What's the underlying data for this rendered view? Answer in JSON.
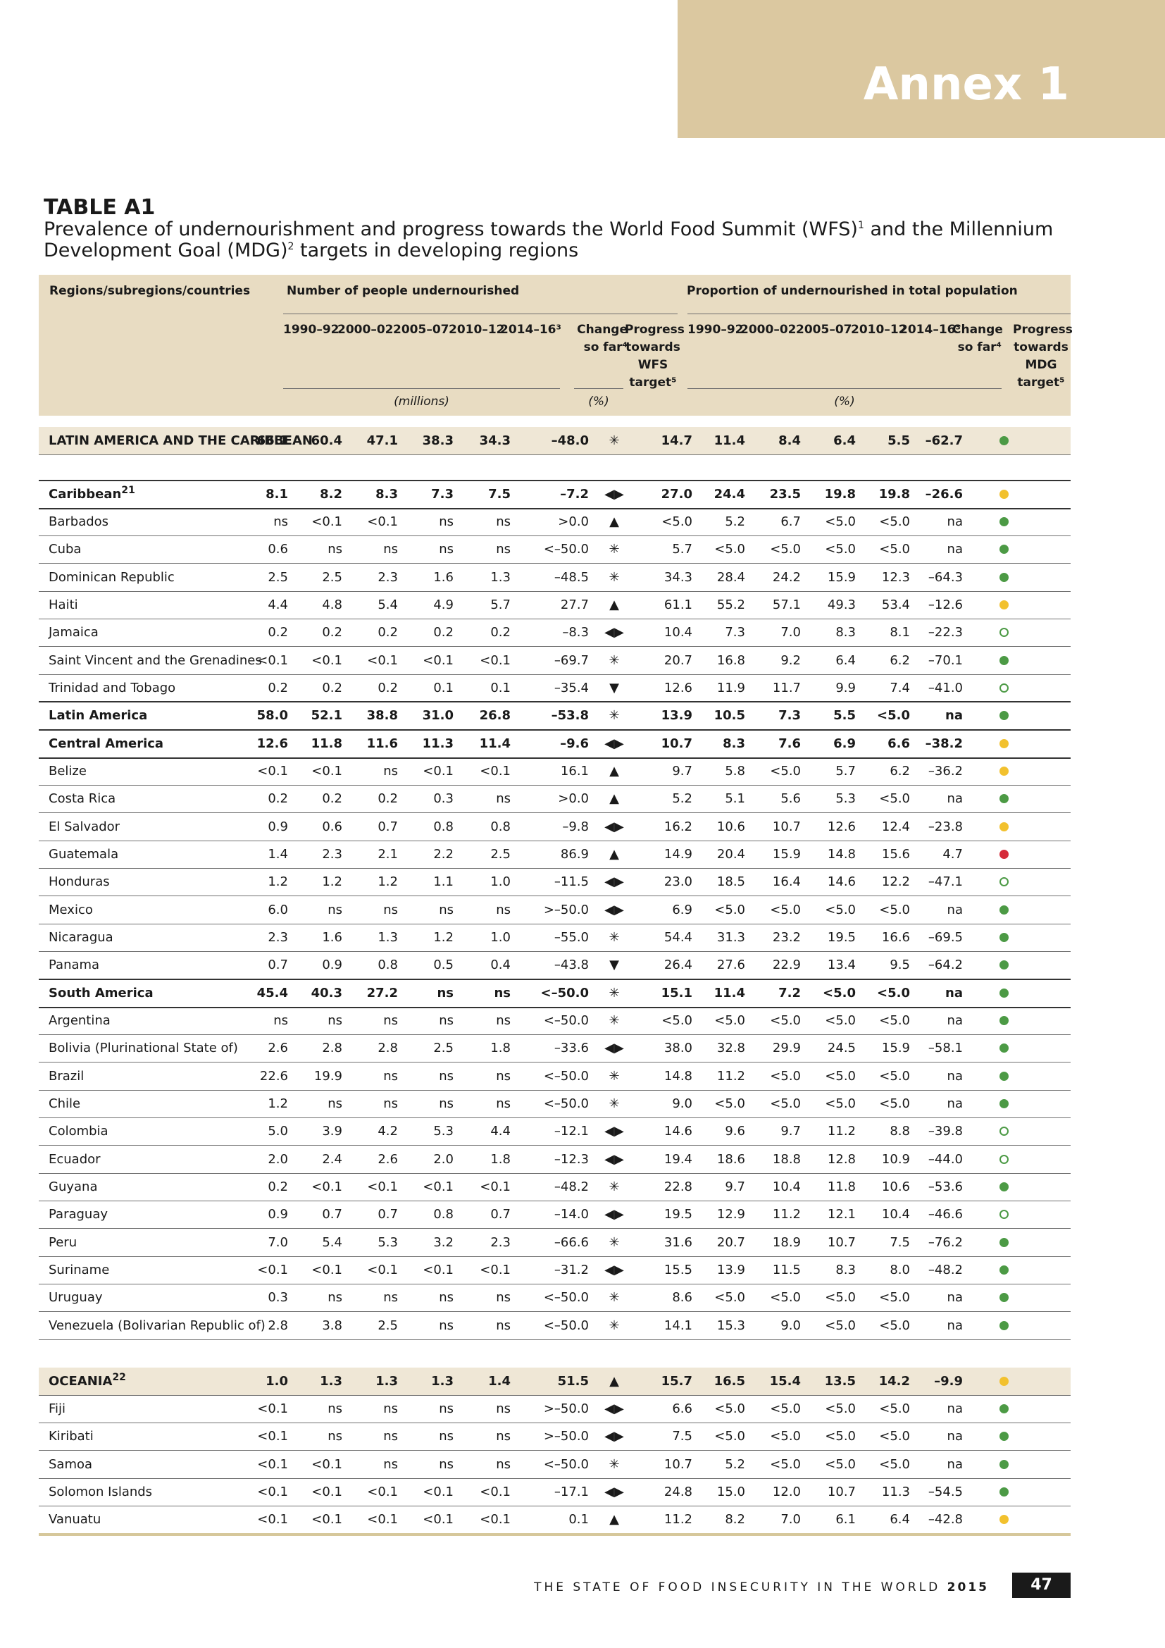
{
  "annex_label": "Annex 1",
  "table_label": "TABLE A1",
  "title_parts": [
    "Prevalence of undernourishment and progress towards the World Food Summit (WFS)",
    "1",
    " and the Millennium Development Goal (MDG)",
    "2",
    " targets in developing regions"
  ],
  "header": {
    "regions": "Regions/subregions/countries",
    "group_people": "Number of people undernourished",
    "group_prop": "Proportion of undernourished in total population",
    "years": [
      "1990–92",
      "2000–02",
      "2005–07",
      "2010–12",
      "2014–16³"
    ],
    "change": [
      "Change",
      "so far⁴"
    ],
    "wfs": [
      "Progress",
      "towards",
      "WFS",
      "target⁵"
    ],
    "mdg": [
      "Progress",
      "towards",
      "MDG",
      "target⁵"
    ],
    "unit_millions": "(millions)",
    "unit_pct": "(%)"
  },
  "dot_colors": {
    "green": "#4c9a45",
    "yellow": "#f2c12e",
    "red": "#d52b3a",
    "open": "#4c9a45"
  },
  "rows": [
    {
      "name": "LATIN AMERICA AND THE CARIBBEAN",
      "fn": "",
      "type": "region",
      "v": [
        "66.1",
        "60.4",
        "47.1",
        "38.3",
        "34.3",
        "–48.0",
        "✳",
        "14.7",
        "11.4",
        "8.4",
        "6.4",
        "5.5",
        "–62.7"
      ],
      "mdg": "green"
    },
    {
      "name": "Caribbean",
      "fn": "21",
      "type": "sub",
      "v": [
        "8.1",
        "8.2",
        "8.3",
        "7.3",
        "7.5",
        "–7.2",
        "◀▶",
        "27.0",
        "24.4",
        "23.5",
        "19.8",
        "19.8",
        "–26.6"
      ],
      "mdg": "yellow"
    },
    {
      "name": "Barbados",
      "fn": "",
      "type": "country",
      "v": [
        "ns",
        "<0.1",
        "<0.1",
        "ns",
        "ns",
        ">0.0",
        "▲",
        "<5.0",
        "5.2",
        "6.7",
        "<5.0",
        "<5.0",
        "na"
      ],
      "mdg": "green"
    },
    {
      "name": "Cuba",
      "fn": "",
      "type": "country",
      "v": [
        "0.6",
        "ns",
        "ns",
        "ns",
        "ns",
        "<–50.0",
        "✳",
        "5.7",
        "<5.0",
        "<5.0",
        "<5.0",
        "<5.0",
        "na"
      ],
      "mdg": "green"
    },
    {
      "name": "Dominican Republic",
      "fn": "",
      "type": "country",
      "v": [
        "2.5",
        "2.5",
        "2.3",
        "1.6",
        "1.3",
        "–48.5",
        "✳",
        "34.3",
        "28.4",
        "24.2",
        "15.9",
        "12.3",
        "–64.3"
      ],
      "mdg": "green"
    },
    {
      "name": "Haiti",
      "fn": "",
      "type": "country",
      "v": [
        "4.4",
        "4.8",
        "5.4",
        "4.9",
        "5.7",
        "27.7",
        "▲",
        "61.1",
        "55.2",
        "57.1",
        "49.3",
        "53.4",
        "–12.6"
      ],
      "mdg": "yellow"
    },
    {
      "name": "Jamaica",
      "fn": "",
      "type": "country",
      "v": [
        "0.2",
        "0.2",
        "0.2",
        "0.2",
        "0.2",
        "–8.3",
        "◀▶",
        "10.4",
        "7.3",
        "7.0",
        "8.3",
        "8.1",
        "–22.3"
      ],
      "mdg": "open"
    },
    {
      "name": "Saint Vincent and the Grenadines",
      "fn": "",
      "type": "country",
      "v": [
        "<0.1",
        "<0.1",
        "<0.1",
        "<0.1",
        "<0.1",
        "–69.7",
        "✳",
        "20.7",
        "16.8",
        "9.2",
        "6.4",
        "6.2",
        "–70.1"
      ],
      "mdg": "green"
    },
    {
      "name": "Trinidad and Tobago",
      "fn": "",
      "type": "country",
      "v": [
        "0.2",
        "0.2",
        "0.2",
        "0.1",
        "0.1",
        "–35.4",
        "▼",
        "12.6",
        "11.9",
        "11.7",
        "9.9",
        "7.4",
        "–41.0"
      ],
      "mdg": "open"
    },
    {
      "name": "Latin America",
      "fn": "",
      "type": "sub",
      "v": [
        "58.0",
        "52.1",
        "38.8",
        "31.0",
        "26.8",
        "–53.8",
        "✳",
        "13.9",
        "10.5",
        "7.3",
        "5.5",
        "<5.0",
        "na"
      ],
      "mdg": "green"
    },
    {
      "name": "Central America",
      "fn": "",
      "type": "sub",
      "v": [
        "12.6",
        "11.8",
        "11.6",
        "11.3",
        "11.4",
        "–9.6",
        "◀▶",
        "10.7",
        "8.3",
        "7.6",
        "6.9",
        "6.6",
        "–38.2"
      ],
      "mdg": "yellow"
    },
    {
      "name": "Belize",
      "fn": "",
      "type": "country",
      "v": [
        "<0.1",
        "<0.1",
        "ns",
        "<0.1",
        "<0.1",
        "16.1",
        "▲",
        "9.7",
        "5.8",
        "<5.0",
        "5.7",
        "6.2",
        "–36.2"
      ],
      "mdg": "yellow"
    },
    {
      "name": "Costa Rica",
      "fn": "",
      "type": "country",
      "v": [
        "0.2",
        "0.2",
        "0.2",
        "0.3",
        "ns",
        ">0.0",
        "▲",
        "5.2",
        "5.1",
        "5.6",
        "5.3",
        "<5.0",
        "na"
      ],
      "mdg": "green"
    },
    {
      "name": "El Salvador",
      "fn": "",
      "type": "country",
      "v": [
        "0.9",
        "0.6",
        "0.7",
        "0.8",
        "0.8",
        "–9.8",
        "◀▶",
        "16.2",
        "10.6",
        "10.7",
        "12.6",
        "12.4",
        "–23.8"
      ],
      "mdg": "yellow"
    },
    {
      "name": "Guatemala",
      "fn": "",
      "type": "country",
      "v": [
        "1.4",
        "2.3",
        "2.1",
        "2.2",
        "2.5",
        "86.9",
        "▲",
        "14.9",
        "20.4",
        "15.9",
        "14.8",
        "15.6",
        "4.7"
      ],
      "mdg": "red"
    },
    {
      "name": "Honduras",
      "fn": "",
      "type": "country",
      "v": [
        "1.2",
        "1.2",
        "1.2",
        "1.1",
        "1.0",
        "–11.5",
        "◀▶",
        "23.0",
        "18.5",
        "16.4",
        "14.6",
        "12.2",
        "–47.1"
      ],
      "mdg": "open"
    },
    {
      "name": "Mexico",
      "fn": "",
      "type": "country",
      "v": [
        "6.0",
        "ns",
        "ns",
        "ns",
        "ns",
        ">–50.0",
        "◀▶",
        "6.9",
        "<5.0",
        "<5.0",
        "<5.0",
        "<5.0",
        "na"
      ],
      "mdg": "green"
    },
    {
      "name": "Nicaragua",
      "fn": "",
      "type": "country",
      "v": [
        "2.3",
        "1.6",
        "1.3",
        "1.2",
        "1.0",
        "–55.0",
        "✳",
        "54.4",
        "31.3",
        "23.2",
        "19.5",
        "16.6",
        "–69.5"
      ],
      "mdg": "green"
    },
    {
      "name": "Panama",
      "fn": "",
      "type": "country",
      "v": [
        "0.7",
        "0.9",
        "0.8",
        "0.5",
        "0.4",
        "–43.8",
        "▼",
        "26.4",
        "27.6",
        "22.9",
        "13.4",
        "9.5",
        "–64.2"
      ],
      "mdg": "green"
    },
    {
      "name": "South America",
      "fn": "",
      "type": "sub",
      "v": [
        "45.4",
        "40.3",
        "27.2",
        "ns",
        "ns",
        "<–50.0",
        "✳",
        "15.1",
        "11.4",
        "7.2",
        "<5.0",
        "<5.0",
        "na"
      ],
      "mdg": "green"
    },
    {
      "name": "Argentina",
      "fn": "",
      "type": "country",
      "v": [
        "ns",
        "ns",
        "ns",
        "ns",
        "ns",
        "<–50.0",
        "✳",
        "<5.0",
        "<5.0",
        "<5.0",
        "<5.0",
        "<5.0",
        "na"
      ],
      "mdg": "green"
    },
    {
      "name": "Bolivia (Plurinational State of)",
      "fn": "",
      "type": "country",
      "v": [
        "2.6",
        "2.8",
        "2.8",
        "2.5",
        "1.8",
        "–33.6",
        "◀▶",
        "38.0",
        "32.8",
        "29.9",
        "24.5",
        "15.9",
        "–58.1"
      ],
      "mdg": "green"
    },
    {
      "name": "Brazil",
      "fn": "",
      "type": "country",
      "v": [
        "22.6",
        "19.9",
        "ns",
        "ns",
        "ns",
        "<–50.0",
        "✳",
        "14.8",
        "11.2",
        "<5.0",
        "<5.0",
        "<5.0",
        "na"
      ],
      "mdg": "green"
    },
    {
      "name": "Chile",
      "fn": "",
      "type": "country",
      "v": [
        "1.2",
        "ns",
        "ns",
        "ns",
        "ns",
        "<–50.0",
        "✳",
        "9.0",
        "<5.0",
        "<5.0",
        "<5.0",
        "<5.0",
        "na"
      ],
      "mdg": "green"
    },
    {
      "name": "Colombia",
      "fn": "",
      "type": "country",
      "v": [
        "5.0",
        "3.9",
        "4.2",
        "5.3",
        "4.4",
        "–12.1",
        "◀▶",
        "14.6",
        "9.6",
        "9.7",
        "11.2",
        "8.8",
        "–39.8"
      ],
      "mdg": "open"
    },
    {
      "name": "Ecuador",
      "fn": "",
      "type": "country",
      "v": [
        "2.0",
        "2.4",
        "2.6",
        "2.0",
        "1.8",
        "–12.3",
        "◀▶",
        "19.4",
        "18.6",
        "18.8",
        "12.8",
        "10.9",
        "–44.0"
      ],
      "mdg": "open"
    },
    {
      "name": "Guyana",
      "fn": "",
      "type": "country",
      "v": [
        "0.2",
        "<0.1",
        "<0.1",
        "<0.1",
        "<0.1",
        "–48.2",
        "✳",
        "22.8",
        "9.7",
        "10.4",
        "11.8",
        "10.6",
        "–53.6"
      ],
      "mdg": "green"
    },
    {
      "name": "Paraguay",
      "fn": "",
      "type": "country",
      "v": [
        "0.9",
        "0.7",
        "0.7",
        "0.8",
        "0.7",
        "–14.0",
        "◀▶",
        "19.5",
        "12.9",
        "11.2",
        "12.1",
        "10.4",
        "–46.6"
      ],
      "mdg": "open"
    },
    {
      "name": "Peru",
      "fn": "",
      "type": "country",
      "v": [
        "7.0",
        "5.4",
        "5.3",
        "3.2",
        "2.3",
        "–66.6",
        "✳",
        "31.6",
        "20.7",
        "18.9",
        "10.7",
        "7.5",
        "–76.2"
      ],
      "mdg": "green"
    },
    {
      "name": "Suriname",
      "fn": "",
      "type": "country",
      "v": [
        "<0.1",
        "<0.1",
        "<0.1",
        "<0.1",
        "<0.1",
        "–31.2",
        "◀▶",
        "15.5",
        "13.9",
        "11.5",
        "8.3",
        "8.0",
        "–48.2"
      ],
      "mdg": "green"
    },
    {
      "name": "Uruguay",
      "fn": "",
      "type": "country",
      "v": [
        "0.3",
        "ns",
        "ns",
        "ns",
        "ns",
        "<–50.0",
        "✳",
        "8.6",
        "<5.0",
        "<5.0",
        "<5.0",
        "<5.0",
        "na"
      ],
      "mdg": "green"
    },
    {
      "name": "Venezuela (Bolivarian Republic of)",
      "fn": "",
      "type": "country",
      "v": [
        "2.8",
        "3.8",
        "2.5",
        "ns",
        "ns",
        "<–50.0",
        "✳",
        "14.1",
        "15.3",
        "9.0",
        "<5.0",
        "<5.0",
        "na"
      ],
      "mdg": "green"
    },
    {
      "name": "OCEANIA",
      "fn": "22",
      "type": "region",
      "v": [
        "1.0",
        "1.3",
        "1.3",
        "1.3",
        "1.4",
        "51.5",
        "▲",
        "15.7",
        "16.5",
        "15.4",
        "13.5",
        "14.2",
        "–9.9"
      ],
      "mdg": "yellow"
    },
    {
      "name": "Fiji",
      "fn": "",
      "type": "country",
      "v": [
        "<0.1",
        "ns",
        "ns",
        "ns",
        "ns",
        ">–50.0",
        "◀▶",
        "6.6",
        "<5.0",
        "<5.0",
        "<5.0",
        "<5.0",
        "na"
      ],
      "mdg": "green"
    },
    {
      "name": "Kiribati",
      "fn": "",
      "type": "country",
      "v": [
        "<0.1",
        "ns",
        "ns",
        "ns",
        "ns",
        ">–50.0",
        "◀▶",
        "7.5",
        "<5.0",
        "<5.0",
        "<5.0",
        "<5.0",
        "na"
      ],
      "mdg": "green"
    },
    {
      "name": "Samoa",
      "fn": "",
      "type": "country",
      "v": [
        "<0.1",
        "<0.1",
        "ns",
        "ns",
        "ns",
        "<–50.0",
        "✳",
        "10.7",
        "5.2",
        "<5.0",
        "<5.0",
        "<5.0",
        "na"
      ],
      "mdg": "green"
    },
    {
      "name": "Solomon Islands",
      "fn": "",
      "type": "country",
      "v": [
        "<0.1",
        "<0.1",
        "<0.1",
        "<0.1",
        "<0.1",
        "–17.1",
        "◀▶",
        "24.8",
        "15.0",
        "12.0",
        "10.7",
        "11.3",
        "–54.5"
      ],
      "mdg": "green"
    },
    {
      "name": "Vanuatu",
      "fn": "",
      "type": "country",
      "v": [
        "<0.1",
        "<0.1",
        "<0.1",
        "<0.1",
        "<0.1",
        "0.1",
        "▲",
        "11.2",
        "8.2",
        "7.0",
        "6.1",
        "6.4",
        "–42.8"
      ],
      "mdg": "yellow"
    }
  ],
  "footer": {
    "text": "THE STATE OF FOOD INSECURITY IN THE WORLD",
    "year": "2015",
    "page": "47"
  }
}
